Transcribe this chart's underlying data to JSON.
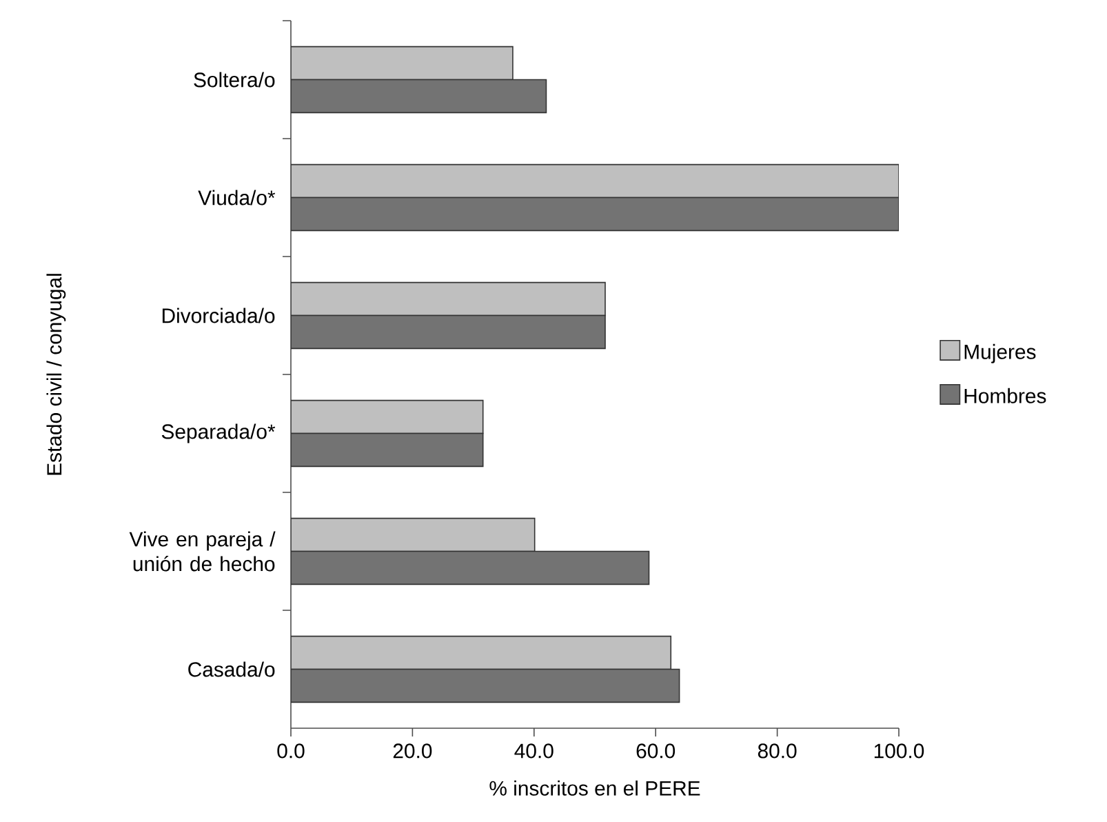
{
  "chart_data": {
    "type": "bar",
    "orientation": "horizontal",
    "xlabel": "% inscritos en el PERE",
    "ylabel": "Estado civil / conyugal",
    "categories": [
      "Soltera/o",
      "Viuda/o*",
      "Divorciada/o",
      "Separada/o*",
      "Vive en pareja / unión de hecho",
      "Casada/o"
    ],
    "series": [
      {
        "name": "Mujeres",
        "color": "#bfbfbf",
        "values": [
          36.5,
          100,
          51.7,
          31.6,
          40.1,
          62.5
        ]
      },
      {
        "name": "Hombres",
        "color": "#737373",
        "values": [
          42.0,
          100,
          51.7,
          31.6,
          58.9,
          63.9
        ]
      }
    ],
    "xlim": [
      0,
      100
    ],
    "xticks": [
      {
        "value": 0,
        "label": "0.0"
      },
      {
        "value": 20,
        "label": "20.0"
      },
      {
        "value": 40,
        "label": "40.0"
      },
      {
        "value": 60,
        "label": "60.0"
      },
      {
        "value": 80,
        "label": "80.0"
      },
      {
        "value": 100,
        "label": "100.0"
      }
    ],
    "grid": false,
    "legend": "right"
  }
}
